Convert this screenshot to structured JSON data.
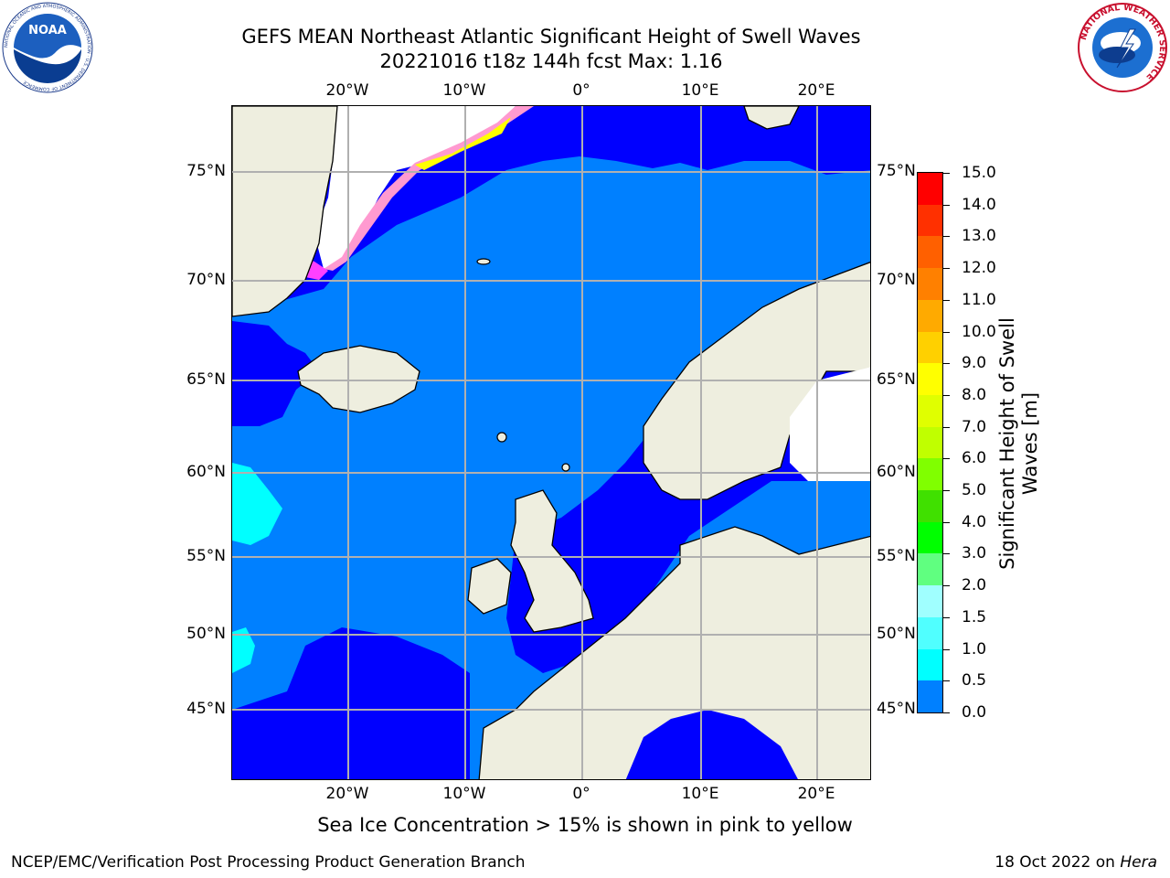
{
  "title": {
    "line1": "GEFS MEAN Northeast Atlantic Significant Height of Swell Waves",
    "line2": "20221016 t18z 144h fcst   Max: 1.16"
  },
  "logos": {
    "noaa": {
      "name": "noaa-logo",
      "text": "NOAA",
      "ring_text": "NATIONAL OCEANIC AND ATMOSPHERIC ADMINISTRATION · U.S. DEPARTMENT OF COMMERCE"
    },
    "nws": {
      "name": "nws-logo",
      "ring_text": "NATIONAL WEATHER SERVICE"
    }
  },
  "map": {
    "x_ticks": [
      "20°W",
      "10°W",
      "0°",
      "10°E",
      "20°E"
    ],
    "y_ticks": [
      "75°N",
      "70°N",
      "65°N",
      "60°N",
      "55°N",
      "50°N",
      "45°N"
    ],
    "colors": {
      "land": "#eeeedf",
      "ocean_low": "#0000ff",
      "ocean_mid": "#0080ff",
      "ocean_high": "#00ffff",
      "ice_free": "#ffffff",
      "sea_ice_pink": "#ff40ff",
      "sea_ice_yellow": "#ffff00",
      "grid": "#b0b0b0"
    }
  },
  "colorbar": {
    "title": "Significant Height of Swell Waves [m]",
    "ticks": [
      "15.0",
      "14.0",
      "13.0",
      "12.0",
      "11.0",
      "10.0",
      "9.0",
      "8.0",
      "7.0",
      "6.0",
      "5.0",
      "4.0",
      "3.0",
      "2.0",
      "1.5",
      "1.0",
      "0.5",
      "0.0"
    ],
    "colors": [
      "#ff0000",
      "#ff3000",
      "#ff6000",
      "#ff8000",
      "#ffaa00",
      "#ffd000",
      "#ffff00",
      "#e0ff00",
      "#c0ff00",
      "#80ff00",
      "#40e000",
      "#00ff00",
      "#60ff80",
      "#a0ffff",
      "#50ffff",
      "#00ffff",
      "#0080ff",
      "#0000ff"
    ]
  },
  "note": "Sea Ice Concentration > 15% is shown in pink to yellow",
  "footer": {
    "left": "NCEP/EMC/Verification Post Processing Product Generation Branch",
    "date": "18 Oct 2022 on",
    "machine": "Hera"
  }
}
